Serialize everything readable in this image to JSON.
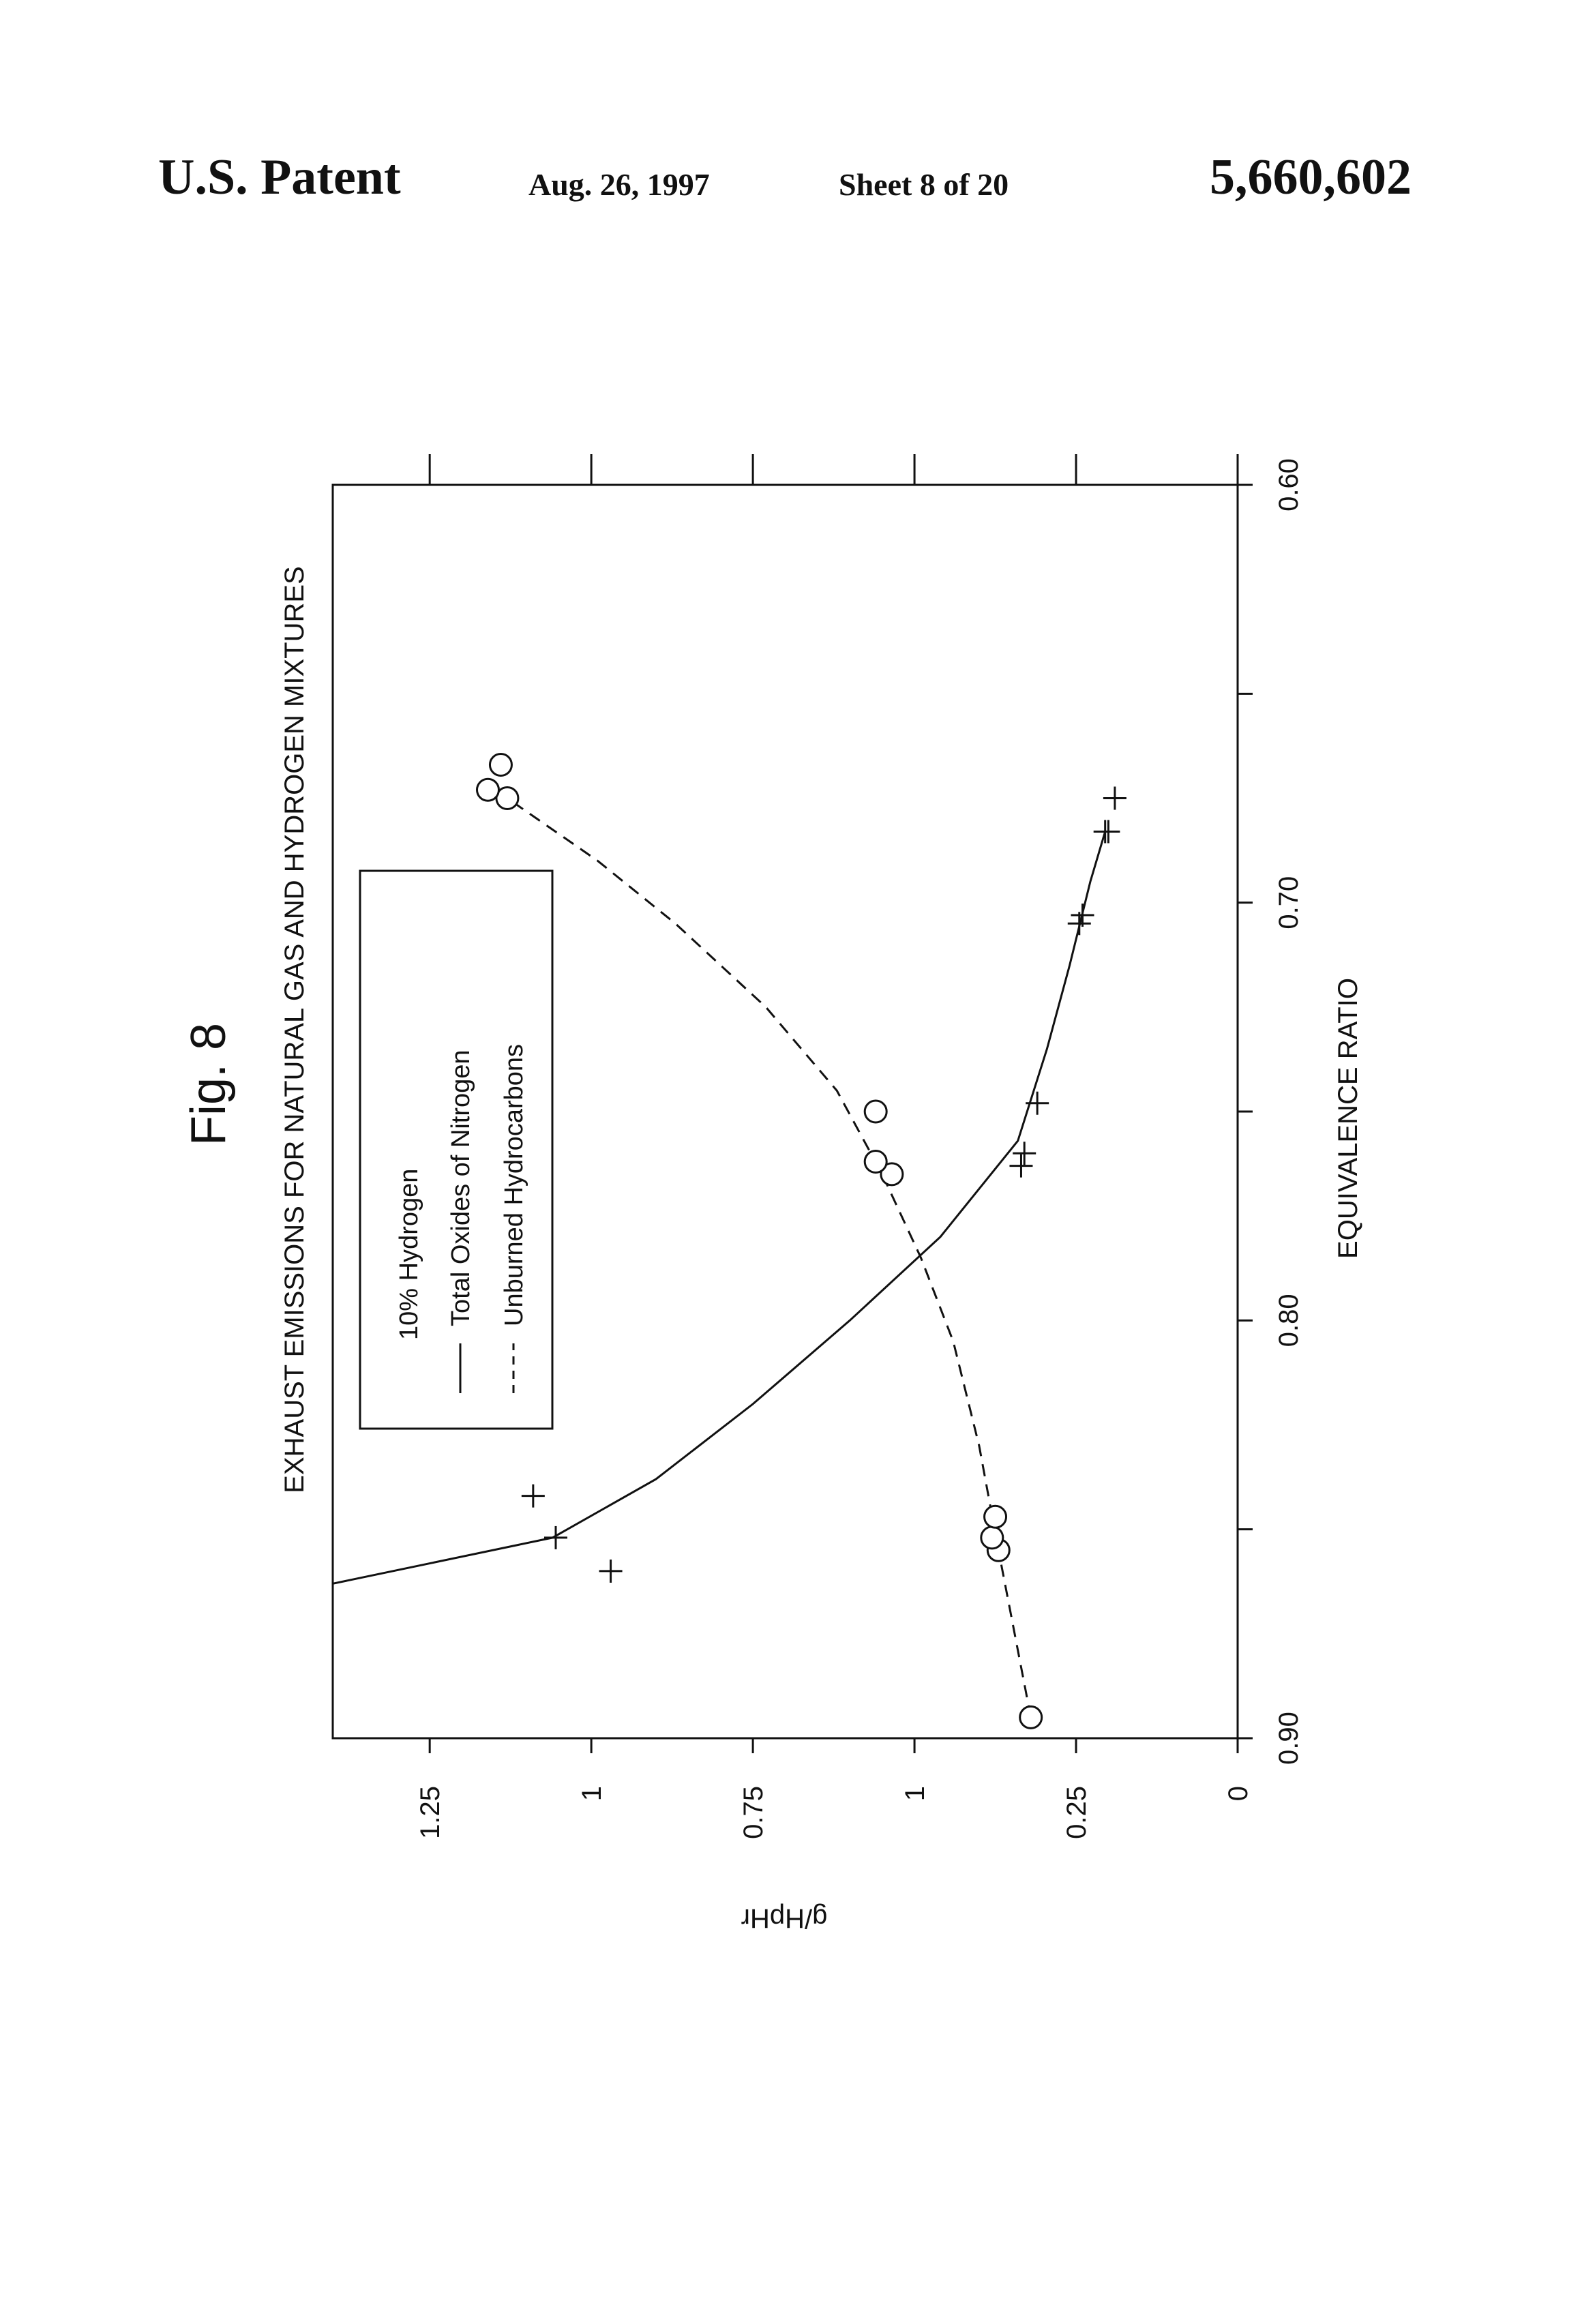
{
  "header": {
    "left": "U.S. Patent",
    "date": "Aug. 26, 1997",
    "sheet": "Sheet 8 of 20",
    "patent_number": "5,660,602"
  },
  "figure": {
    "label": "Fig. 8"
  },
  "chart_data": {
    "type": "scatter",
    "title": "EXHAUST EMISSIONS FOR NATURAL GAS AND HYDROGEN MIXTURES",
    "xlabel": "EQUIVALENCE RATIO",
    "ylabel": "g/HpHr",
    "xlim": [
      0.9,
      0.6
    ],
    "ylim": [
      0,
      1.4
    ],
    "x_ticks": [
      {
        "value": 0.9,
        "label": "0.90"
      },
      {
        "value": 0.8,
        "label": "0.80"
      },
      {
        "value": 0.7,
        "label": "0.70"
      },
      {
        "value": 0.6,
        "label": "0.60"
      }
    ],
    "x_minor_ticks": [
      0.85,
      0.75,
      0.65
    ],
    "y_ticks": [
      {
        "value": 0,
        "label": "0"
      },
      {
        "value": 0.25,
        "label": "0.25"
      },
      {
        "value": 0.5,
        "label": "1"
      },
      {
        "value": 0.75,
        "label": "0.75"
      },
      {
        "value": 1.0,
        "label": "1"
      },
      {
        "value": 1.25,
        "label": "1.25"
      }
    ],
    "legend": {
      "title": "10% Hydrogen",
      "position": "top-right",
      "entries": [
        {
          "label": "Total Oxides of Nitrogen",
          "line": "solid"
        },
        {
          "label": "Unburned Hydrocarbons",
          "line": "dashed"
        }
      ]
    },
    "series": [
      {
        "name": "Total Oxides of Nitrogen",
        "marker": "plus",
        "line": "solid",
        "points": [
          {
            "x": 0.842,
            "y": 1.09
          },
          {
            "x": 0.852,
            "y": 1.055
          },
          {
            "x": 0.86,
            "y": 0.97
          },
          {
            "x": 0.763,
            "y": 0.335
          },
          {
            "x": 0.76,
            "y": 0.33
          },
          {
            "x": 0.748,
            "y": 0.31
          },
          {
            "x": 0.705,
            "y": 0.245
          },
          {
            "x": 0.703,
            "y": 0.24
          },
          {
            "x": 0.683,
            "y": 0.2
          },
          {
            "x": 0.683,
            "y": 0.205
          },
          {
            "x": 0.675,
            "y": 0.19
          }
        ],
        "fit_curve": [
          {
            "x": 0.863,
            "y": 1.4
          },
          {
            "x": 0.852,
            "y": 1.06
          },
          {
            "x": 0.838,
            "y": 0.9
          },
          {
            "x": 0.82,
            "y": 0.75
          },
          {
            "x": 0.8,
            "y": 0.6
          },
          {
            "x": 0.78,
            "y": 0.46
          },
          {
            "x": 0.757,
            "y": 0.34
          },
          {
            "x": 0.735,
            "y": 0.295
          },
          {
            "x": 0.715,
            "y": 0.26
          },
          {
            "x": 0.695,
            "y": 0.228
          },
          {
            "x": 0.683,
            "y": 0.205
          }
        ]
      },
      {
        "name": "Unburned Hydrocarbons",
        "marker": "circle",
        "line": "dashed",
        "points": [
          {
            "x": 0.895,
            "y": 0.32
          },
          {
            "x": 0.855,
            "y": 0.37
          },
          {
            "x": 0.852,
            "y": 0.38
          },
          {
            "x": 0.847,
            "y": 0.375
          },
          {
            "x": 0.765,
            "y": 0.535
          },
          {
            "x": 0.762,
            "y": 0.56
          },
          {
            "x": 0.75,
            "y": 0.56
          },
          {
            "x": 0.675,
            "y": 1.13
          },
          {
            "x": 0.673,
            "y": 1.16
          },
          {
            "x": 0.667,
            "y": 1.14
          }
        ],
        "fit_curve": [
          {
            "x": 0.895,
            "y": 0.32
          },
          {
            "x": 0.875,
            "y": 0.345
          },
          {
            "x": 0.855,
            "y": 0.37
          },
          {
            "x": 0.83,
            "y": 0.4
          },
          {
            "x": 0.805,
            "y": 0.44
          },
          {
            "x": 0.785,
            "y": 0.49
          },
          {
            "x": 0.765,
            "y": 0.55
          },
          {
            "x": 0.745,
            "y": 0.62
          },
          {
            "x": 0.725,
            "y": 0.73
          },
          {
            "x": 0.705,
            "y": 0.87
          },
          {
            "x": 0.69,
            "y": 0.99
          },
          {
            "x": 0.675,
            "y": 1.13
          }
        ]
      }
    ]
  }
}
